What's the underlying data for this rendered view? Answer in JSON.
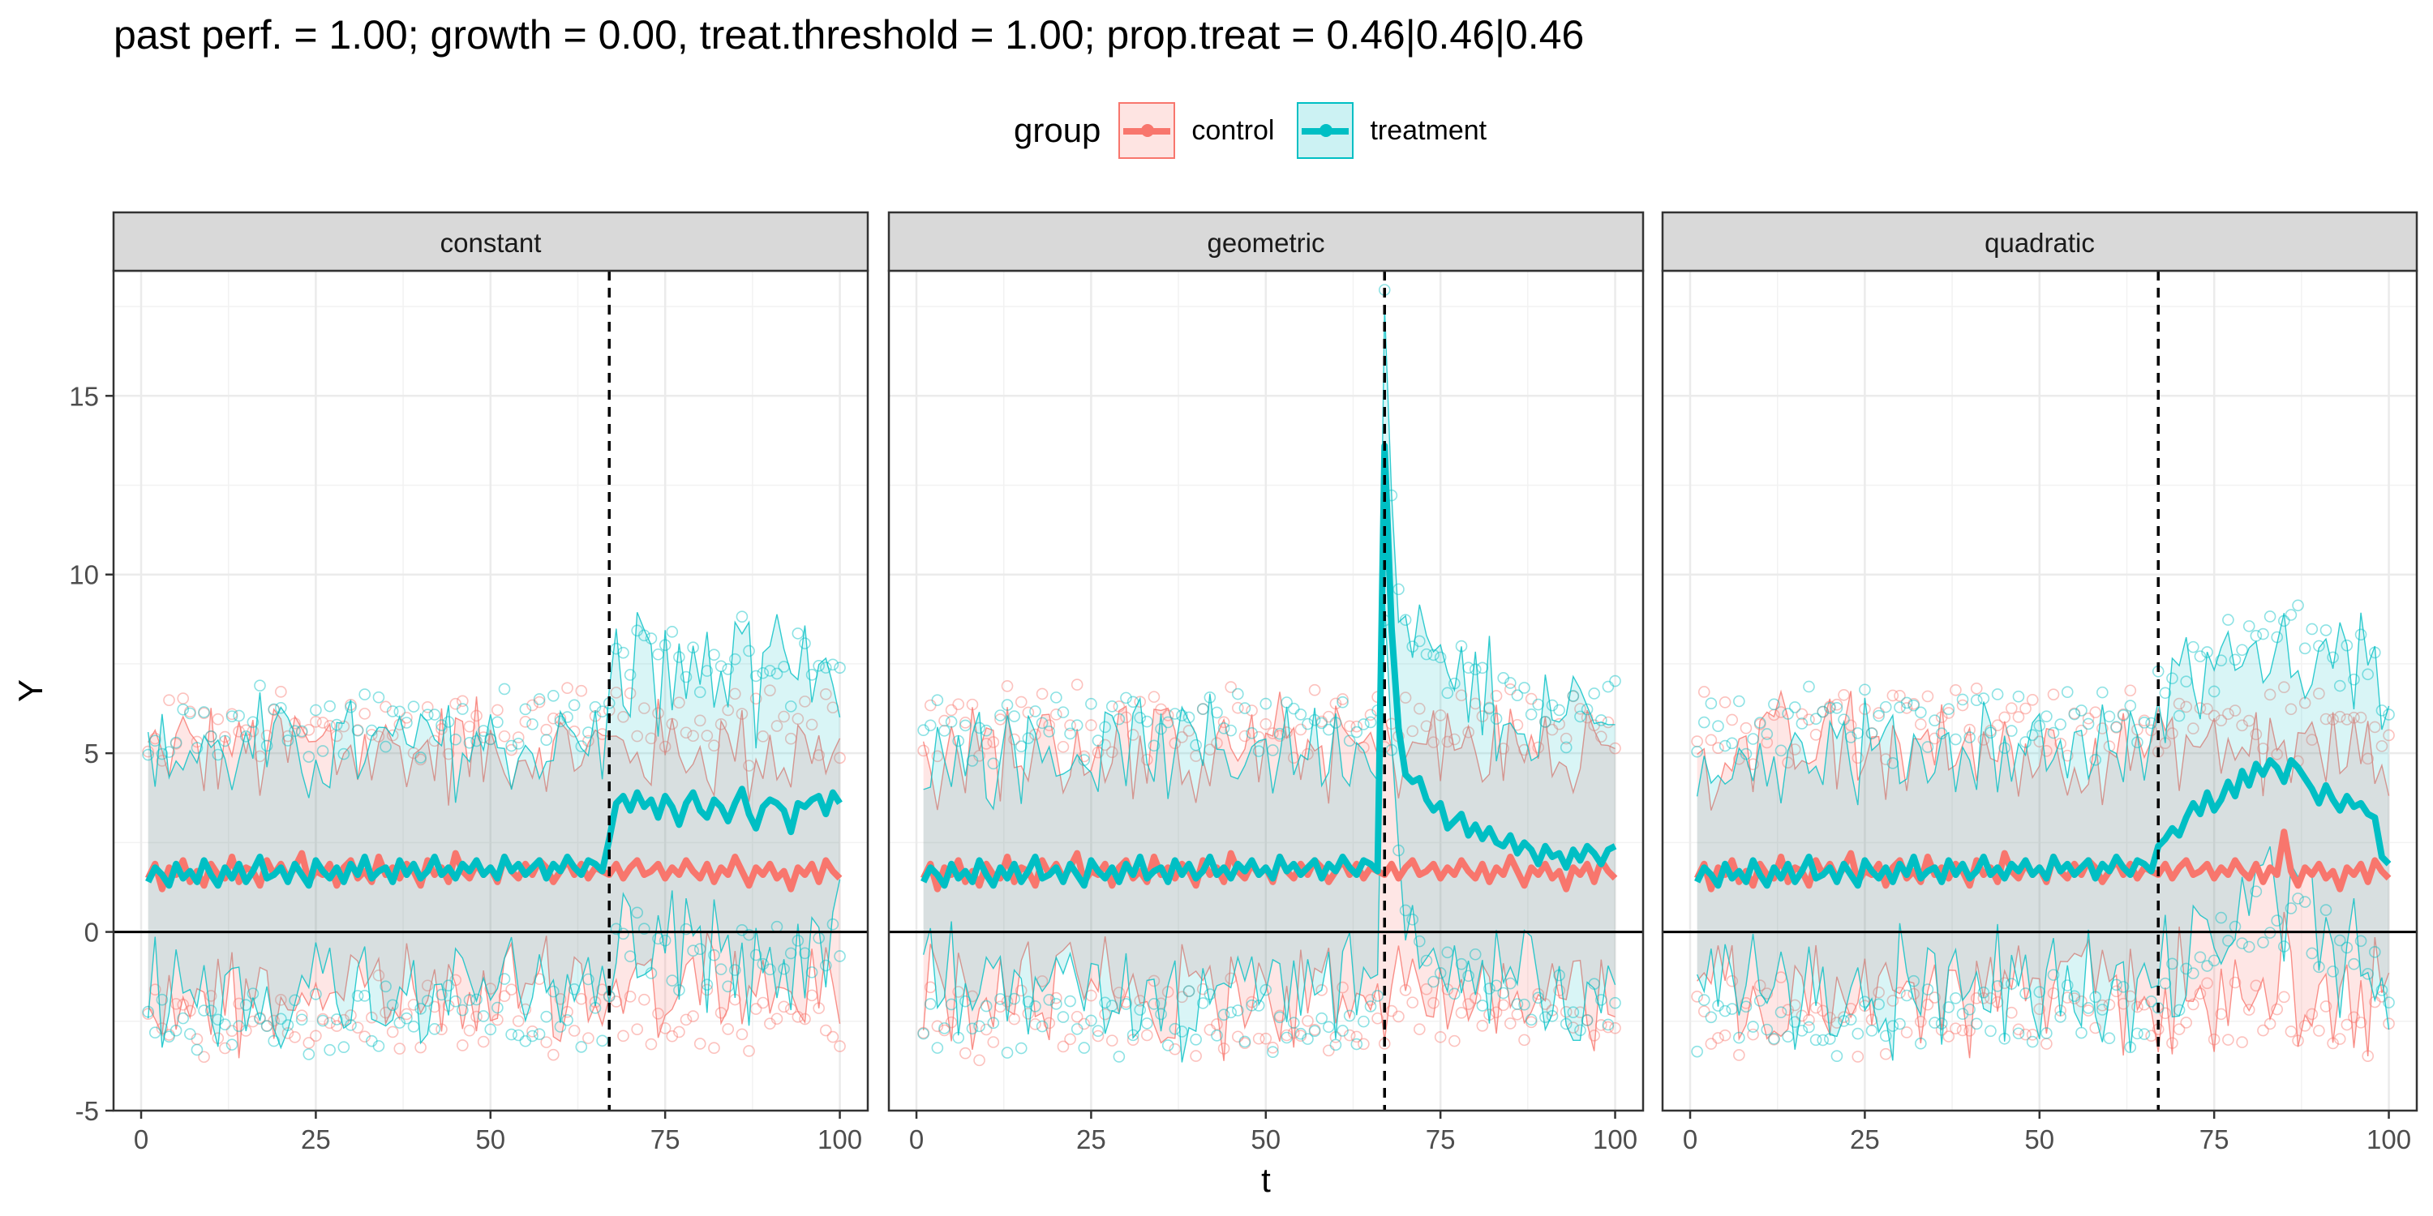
{
  "chart_data": {
    "type": "line",
    "title": "past perf. = 1.00; growth = 0.00,  treat.threshold = 1.00;  prop.treat = 0.46|0.46|0.46",
    "xlabel": "t",
    "ylabel": "Y",
    "xlim": [
      1,
      100
    ],
    "ylim": [
      -5,
      18.5
    ],
    "x_ticks": [
      0,
      25,
      50,
      75,
      100
    ],
    "y_ticks": [
      -5,
      0,
      5,
      10,
      15
    ],
    "vline_x": 67,
    "hline_y": 0,
    "legend": {
      "title": "group",
      "position": "top",
      "entries": [
        "control",
        "treatment"
      ]
    },
    "colors": {
      "control": "#F8766D",
      "treatment": "#00BFC4"
    },
    "grid": true,
    "panels": [
      {
        "name": "constant",
        "series": [
          {
            "name": "control",
            "values": [
              1.5,
              1.9,
              1.2,
              1.8,
              1.6,
              2.0,
              1.4,
              1.7,
              1.3,
              1.9,
              1.6,
              1.5,
              2.1,
              1.4,
              1.8,
              1.7,
              1.3,
              2.0,
              1.6,
              1.9,
              1.5,
              1.8,
              2.2,
              1.4,
              1.7,
              1.6,
              1.9,
              1.3,
              1.8,
              2.0,
              1.5,
              1.7,
              1.4,
              2.1,
              1.6,
              1.8,
              1.5,
              1.9,
              1.7,
              1.3,
              2.0,
              1.6,
              1.8,
              1.4,
              2.2,
              1.7,
              1.5,
              1.9,
              1.6,
              1.8,
              1.4,
              2.1,
              1.7,
              1.5,
              1.9,
              1.6,
              2.0,
              1.8,
              1.4,
              1.7,
              2.0,
              1.6,
              1.9,
              1.5,
              1.8,
              1.7,
              1.6,
              1.9,
              1.5,
              1.8,
              2.0,
              1.6,
              1.7,
              1.9,
              1.5,
              1.8,
              1.6,
              2.0,
              1.7,
              1.5,
              1.9,
              1.4,
              1.8,
              1.6,
              2.1,
              1.7,
              1.3,
              1.8,
              1.6,
              1.9,
              1.5,
              1.7,
              1.2,
              1.8,
              1.6,
              1.9,
              1.4,
              2.0,
              1.7,
              1.5
            ]
          },
          {
            "name": "treatment",
            "values": [
              1.4,
              1.8,
              1.6,
              1.3,
              1.9,
              1.5,
              1.7,
              1.4,
              2.0,
              1.6,
              1.3,
              1.8,
              1.5,
              1.9,
              1.4,
              1.7,
              2.1,
              1.5,
              1.6,
              1.8,
              1.4,
              1.9,
              1.6,
              1.3,
              2.0,
              1.7,
              1.5,
              1.8,
              1.4,
              1.9,
              1.6,
              2.1,
              1.5,
              1.7,
              1.8,
              1.4,
              2.0,
              1.6,
              1.9,
              1.5,
              1.7,
              2.1,
              1.6,
              1.8,
              1.5,
              1.9,
              1.7,
              2.0,
              1.6,
              1.8,
              1.5,
              2.1,
              1.7,
              1.9,
              1.6,
              1.8,
              2.0,
              1.5,
              1.9,
              1.7,
              2.1,
              1.8,
              1.6,
              2.0,
              1.9,
              1.7,
              2.6,
              3.6,
              3.8,
              3.4,
              3.9,
              3.5,
              3.7,
              3.2,
              3.8,
              3.5,
              3.0,
              3.6,
              3.9,
              3.4,
              3.2,
              3.7,
              3.5,
              3.1,
              3.6,
              4.0,
              3.3,
              2.9,
              3.5,
              3.7,
              3.6,
              3.4,
              2.8,
              3.6,
              3.5,
              3.7,
              3.8,
              3.3,
              3.9,
              3.6
            ]
          }
        ]
      },
      {
        "name": "geometric",
        "series": [
          {
            "name": "control",
            "values": [
              1.5,
              1.9,
              1.2,
              1.8,
              1.6,
              2.0,
              1.4,
              1.7,
              1.3,
              1.9,
              1.6,
              1.5,
              2.1,
              1.4,
              1.8,
              1.7,
              1.3,
              2.0,
              1.6,
              1.9,
              1.5,
              1.8,
              2.2,
              1.4,
              1.7,
              1.6,
              1.9,
              1.3,
              1.8,
              2.0,
              1.5,
              1.7,
              1.4,
              2.1,
              1.6,
              1.8,
              1.5,
              1.9,
              1.7,
              1.3,
              2.0,
              1.6,
              1.8,
              1.4,
              2.2,
              1.7,
              1.5,
              1.9,
              1.6,
              1.8,
              1.4,
              2.1,
              1.7,
              1.5,
              1.9,
              1.6,
              2.0,
              1.8,
              1.4,
              1.7,
              2.0,
              1.6,
              1.9,
              1.5,
              1.8,
              1.7,
              1.6,
              1.9,
              1.5,
              1.8,
              2.0,
              1.6,
              1.7,
              1.9,
              1.5,
              1.8,
              1.6,
              2.0,
              1.7,
              1.5,
              1.9,
              1.4,
              1.8,
              1.6,
              2.1,
              1.7,
              1.3,
              1.8,
              1.6,
              1.9,
              1.5,
              1.7,
              1.2,
              1.8,
              1.6,
              1.9,
              1.4,
              2.0,
              1.7,
              1.5
            ]
          },
          {
            "name": "treatment",
            "values": [
              1.4,
              1.8,
              1.6,
              1.3,
              1.9,
              1.5,
              1.7,
              1.4,
              2.0,
              1.6,
              1.3,
              1.8,
              1.5,
              1.9,
              1.4,
              1.7,
              2.1,
              1.5,
              1.6,
              1.8,
              1.4,
              1.9,
              1.6,
              1.3,
              2.0,
              1.7,
              1.5,
              1.8,
              1.4,
              1.9,
              1.6,
              2.1,
              1.5,
              1.7,
              1.8,
              1.4,
              2.0,
              1.6,
              1.9,
              1.5,
              1.7,
              2.1,
              1.6,
              1.8,
              1.5,
              1.9,
              1.7,
              2.0,
              1.6,
              1.8,
              1.5,
              2.1,
              1.7,
              1.9,
              1.6,
              1.8,
              2.0,
              1.5,
              1.9,
              1.7,
              2.1,
              1.8,
              1.6,
              2.0,
              1.9,
              1.7,
              13.6,
              8.5,
              5.7,
              4.4,
              4.2,
              4.3,
              3.7,
              3.4,
              3.6,
              2.9,
              3.1,
              3.3,
              2.7,
              3.0,
              2.6,
              2.9,
              2.5,
              2.4,
              2.7,
              2.2,
              2.5,
              2.3,
              1.9,
              2.4,
              2.1,
              2.2,
              1.8,
              2.3,
              2.0,
              2.4,
              2.2,
              1.9,
              2.3,
              2.4
            ]
          }
        ]
      },
      {
        "name": "quadratic",
        "series": [
          {
            "name": "control",
            "values": [
              1.5,
              1.9,
              1.2,
              1.8,
              1.6,
              2.0,
              1.4,
              1.7,
              1.3,
              1.9,
              1.6,
              1.5,
              2.1,
              1.4,
              1.8,
              1.7,
              1.3,
              2.0,
              1.6,
              1.9,
              1.5,
              1.8,
              2.2,
              1.4,
              1.7,
              1.6,
              1.9,
              1.3,
              1.8,
              2.0,
              1.5,
              1.7,
              1.4,
              2.1,
              1.6,
              1.8,
              1.5,
              1.9,
              1.7,
              1.3,
              2.0,
              1.6,
              1.8,
              1.4,
              2.2,
              1.7,
              1.5,
              1.9,
              1.6,
              1.8,
              1.4,
              2.1,
              1.7,
              1.5,
              1.9,
              1.6,
              2.0,
              1.8,
              1.4,
              1.7,
              2.0,
              1.6,
              1.9,
              1.5,
              1.8,
              1.7,
              1.6,
              1.9,
              1.5,
              1.8,
              2.0,
              1.6,
              1.7,
              1.9,
              1.5,
              1.8,
              1.6,
              2.0,
              1.7,
              1.5,
              1.9,
              1.4,
              1.8,
              1.6,
              2.8,
              1.7,
              1.3,
              1.8,
              1.6,
              1.9,
              1.5,
              1.7,
              1.2,
              1.8,
              1.6,
              1.9,
              1.4,
              2.0,
              1.7,
              1.5
            ]
          },
          {
            "name": "treatment",
            "values": [
              1.4,
              1.8,
              1.6,
              1.3,
              1.9,
              1.5,
              1.7,
              1.4,
              2.0,
              1.6,
              1.3,
              1.8,
              1.5,
              1.9,
              1.4,
              1.7,
              2.1,
              1.5,
              1.6,
              1.8,
              1.4,
              1.9,
              1.6,
              1.3,
              2.0,
              1.7,
              1.5,
              1.8,
              1.4,
              1.9,
              1.6,
              2.1,
              1.5,
              1.7,
              1.8,
              1.4,
              2.0,
              1.6,
              1.9,
              1.5,
              1.7,
              2.1,
              1.6,
              1.8,
              1.5,
              1.9,
              1.7,
              2.0,
              1.6,
              1.8,
              1.5,
              2.1,
              1.7,
              1.9,
              1.6,
              1.8,
              2.0,
              1.5,
              1.9,
              1.7,
              2.1,
              1.8,
              1.6,
              2.0,
              1.9,
              1.7,
              2.4,
              2.6,
              2.9,
              2.7,
              3.2,
              3.6,
              3.3,
              3.9,
              3.4,
              3.7,
              4.2,
              3.8,
              4.5,
              4.1,
              4.7,
              4.4,
              4.8,
              4.6,
              4.2,
              4.8,
              4.6,
              4.3,
              4.0,
              3.6,
              4.1,
              3.7,
              3.4,
              3.8,
              3.5,
              3.6,
              3.3,
              3.2,
              2.1,
              1.9
            ]
          }
        ]
      }
    ]
  }
}
